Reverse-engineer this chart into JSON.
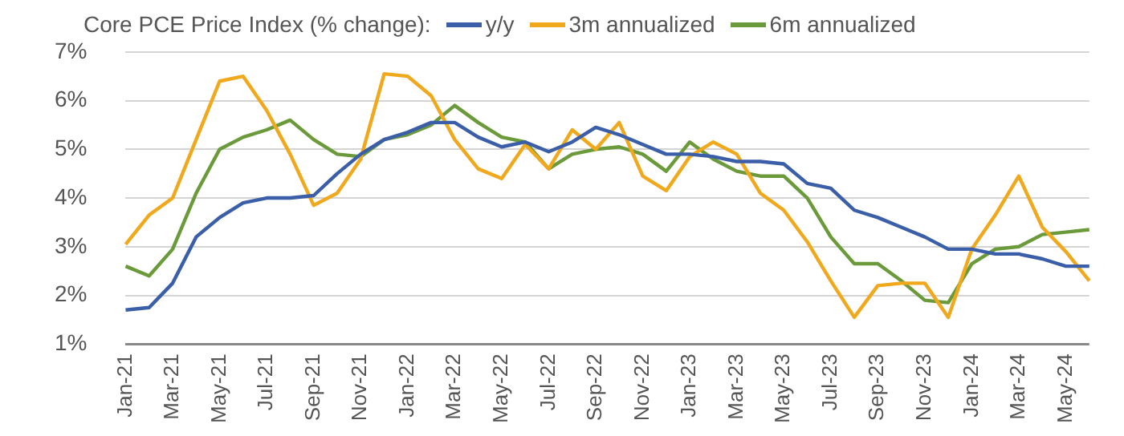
{
  "chart_data": {
    "type": "line",
    "title": "Core PCE Price Index (% change):",
    "categories": [
      "Jan-21",
      null,
      "Mar-21",
      null,
      "May-21",
      null,
      "Jul-21",
      null,
      "Sep-21",
      null,
      "Nov-21",
      null,
      "Jan-22",
      null,
      "Mar-22",
      null,
      "May-22",
      null,
      "Jul-22",
      null,
      "Sep-22",
      null,
      "Nov-22",
      null,
      "Jan-23",
      null,
      "Mar-23",
      null,
      "May-23",
      null,
      "Jul-23",
      null,
      "Sep-23",
      null,
      "Nov-23",
      null,
      "Jan-24",
      null,
      "Mar-24",
      null,
      "May-24",
      null
    ],
    "series": [
      {
        "name": "y/y",
        "color": "#3a5ea8",
        "values": [
          1.7,
          1.75,
          2.25,
          3.2,
          3.6,
          3.9,
          4.0,
          4.0,
          4.05,
          4.5,
          4.9,
          5.2,
          5.35,
          5.55,
          5.55,
          5.25,
          5.05,
          5.15,
          4.95,
          5.15,
          5.45,
          5.3,
          5.1,
          4.9,
          4.9,
          4.85,
          4.75,
          4.75,
          4.7,
          4.3,
          4.2,
          3.75,
          3.6,
          3.4,
          3.2,
          2.95,
          2.95,
          2.85,
          2.85,
          2.75,
          2.6,
          2.6
        ]
      },
      {
        "name": "3m annualized",
        "color": "#f0a81c",
        "values": [
          3.05,
          3.65,
          4.0,
          5.2,
          6.4,
          6.5,
          5.8,
          4.9,
          3.85,
          4.1,
          4.8,
          6.55,
          6.5,
          6.1,
          5.2,
          4.6,
          4.4,
          5.1,
          4.6,
          5.4,
          5.0,
          5.55,
          4.45,
          4.15,
          4.85,
          5.15,
          4.9,
          4.1,
          3.75,
          3.1,
          2.3,
          1.55,
          2.2,
          2.25,
          2.25,
          1.55,
          2.95,
          3.65,
          4.45,
          3.4,
          2.9,
          2.3
        ]
      },
      {
        "name": "6m annualized",
        "color": "#6a9a3a",
        "values": [
          2.6,
          2.4,
          2.95,
          4.1,
          5.0,
          5.25,
          5.4,
          5.6,
          5.2,
          4.9,
          4.85,
          5.2,
          5.3,
          5.5,
          5.9,
          5.55,
          5.25,
          5.15,
          4.6,
          4.9,
          5.0,
          5.05,
          4.9,
          4.55,
          5.15,
          4.8,
          4.55,
          4.45,
          4.45,
          4.0,
          3.2,
          2.65,
          2.65,
          2.3,
          1.9,
          1.85,
          2.65,
          2.95,
          3.0,
          3.25,
          3.3,
          3.35
        ]
      }
    ],
    "ylim": [
      1,
      7
    ],
    "yticks": [
      {
        "value": 1,
        "label": "1%"
      },
      {
        "value": 2,
        "label": "2%"
      },
      {
        "value": 3,
        "label": "3%"
      },
      {
        "value": 4,
        "label": "4%"
      },
      {
        "value": 5,
        "label": "5%"
      },
      {
        "value": 6,
        "label": "6%"
      },
      {
        "value": 7,
        "label": "7%"
      }
    ],
    "grid": "y",
    "legend": "top",
    "marker": "none",
    "line_style": "solid"
  }
}
